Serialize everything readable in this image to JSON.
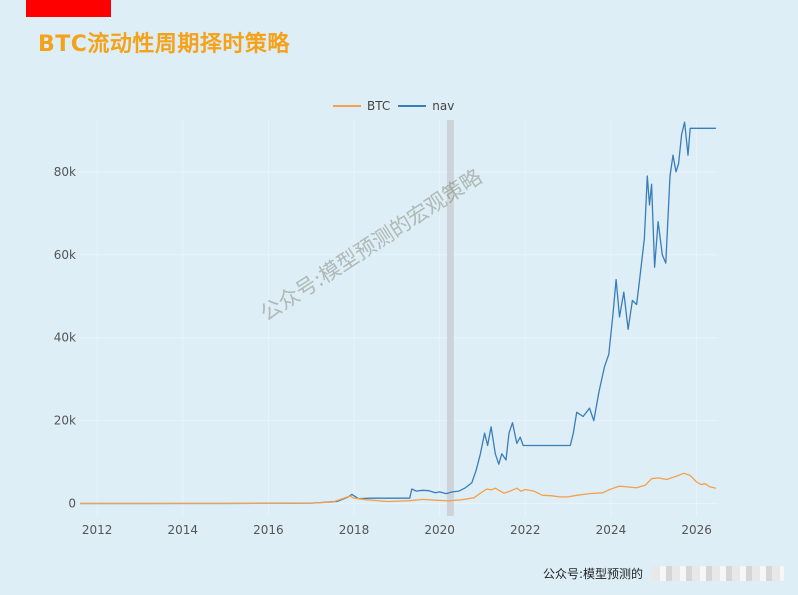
{
  "page": {
    "title": "BTC流动性周期择时策略",
    "watermark": "公众号:模型预测的宏观策略",
    "footer": "公众号:模型预测的"
  },
  "colors": {
    "background": "#ddeef7",
    "title": "#f5a21b",
    "btc": "#f5a04a",
    "nav": "#3a7db8",
    "shade": "#c9cccf",
    "red_tab": "#ff0000"
  },
  "chart_data": {
    "type": "line",
    "title": "BTC流动性周期择时策略",
    "legend": {
      "placement": "top-center",
      "entries": [
        "BTC",
        "nav"
      ]
    },
    "x_ticks": [
      "2012",
      "2014",
      "2016",
      "2018",
      "2020",
      "2022",
      "2024",
      "2026"
    ],
    "y_ticks": [
      {
        "value": 0,
        "label": "0"
      },
      {
        "value": 20000,
        "label": "20k"
      },
      {
        "value": 40000,
        "label": "40k"
      },
      {
        "value": 60000,
        "label": "60k"
      },
      {
        "value": 80000,
        "label": "80k"
      }
    ],
    "xlim": [
      2011.6,
      2026.5
    ],
    "ylim": [
      -3000,
      92500
    ],
    "grid": true,
    "shaded_region": [
      2020.17,
      2020.33
    ],
    "series": [
      {
        "name": "BTC",
        "x": [
          2011.6,
          2013.0,
          2014.0,
          2015.0,
          2016.0,
          2017.0,
          2017.5,
          2017.9,
          2018.0,
          2018.3,
          2018.8,
          2019.3,
          2019.6,
          2019.9,
          2020.2,
          2020.5,
          2020.8,
          2020.95,
          2021.1,
          2021.2,
          2021.3,
          2021.5,
          2021.6,
          2021.8,
          2021.9,
          2022.0,
          2022.2,
          2022.4,
          2022.6,
          2022.8,
          2023.0,
          2023.2,
          2023.5,
          2023.8,
          2024.0,
          2024.2,
          2024.4,
          2024.6,
          2024.8,
          2024.95,
          2025.1,
          2025.3,
          2025.5,
          2025.7,
          2025.85,
          2026.0,
          2026.1,
          2026.2,
          2026.3,
          2026.45
        ],
        "y": [
          5,
          10,
          40,
          30,
          40,
          100,
          350,
          1800,
          1300,
          900,
          500,
          700,
          1000,
          800,
          650,
          900,
          1400,
          2500,
          3500,
          3300,
          3700,
          2500,
          2800,
          3700,
          3000,
          3400,
          3000,
          2000,
          1900,
          1600,
          1600,
          2000,
          2400,
          2600,
          3500,
          4200,
          4000,
          3800,
          4400,
          6000,
          6200,
          5800,
          6500,
          7300,
          6800,
          5200,
          4600,
          4800,
          4100,
          3700
        ]
      },
      {
        "name": "nav",
        "x": [
          2011.6,
          2015.0,
          2017.0,
          2017.6,
          2017.85,
          2017.95,
          2018.1,
          2018.4,
          2019.3,
          2019.35,
          2019.45,
          2019.6,
          2019.75,
          2019.9,
          2020.0,
          2020.15,
          2020.3,
          2020.45,
          2020.6,
          2020.75,
          2020.85,
          2020.95,
          2021.05,
          2021.12,
          2021.2,
          2021.3,
          2021.38,
          2021.45,
          2021.55,
          2021.62,
          2021.7,
          2021.8,
          2021.88,
          2021.95,
          2023.05,
          2023.12,
          2023.2,
          2023.35,
          2023.5,
          2023.6,
          2023.72,
          2023.85,
          2023.95,
          2024.05,
          2024.12,
          2024.2,
          2024.3,
          2024.4,
          2024.5,
          2024.6,
          2024.68,
          2024.78,
          2024.85,
          2024.9,
          2024.95,
          2025.02,
          2025.1,
          2025.2,
          2025.28,
          2025.38,
          2025.45,
          2025.52,
          2025.58,
          2025.65,
          2025.72,
          2025.8,
          2025.85,
          2026.45
        ],
        "y": [
          5,
          20,
          100,
          500,
          1500,
          2200,
          1200,
          1300,
          1300,
          3500,
          3000,
          3200,
          3100,
          2600,
          2800,
          2400,
          2800,
          3000,
          3800,
          5000,
          8000,
          12000,
          17000,
          14000,
          18500,
          12000,
          9500,
          12000,
          10500,
          17000,
          19500,
          14500,
          16000,
          14000,
          14000,
          17000,
          22000,
          21000,
          23000,
          20000,
          27000,
          33000,
          36000,
          46000,
          54000,
          45000,
          51000,
          42000,
          49000,
          48000,
          55000,
          64000,
          79000,
          72000,
          77000,
          57000,
          68000,
          60000,
          58000,
          79000,
          84000,
          80000,
          82000,
          89000,
          92000,
          84000,
          90500,
          90500
        ]
      }
    ]
  }
}
